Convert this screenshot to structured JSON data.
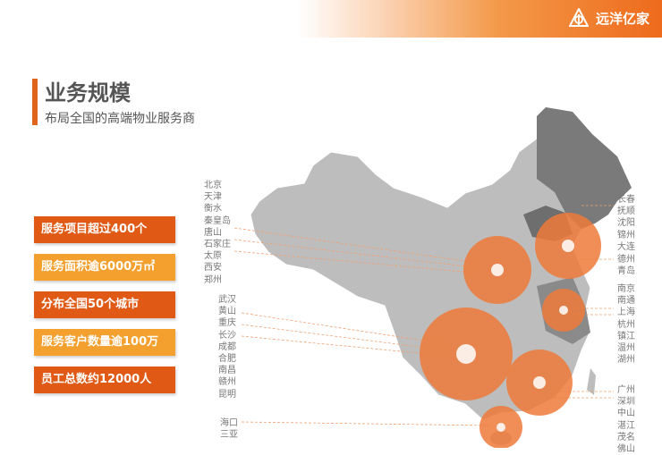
{
  "header": {
    "brand": "远洋亿家",
    "logo_icon": "ocean-homeplus-logo"
  },
  "title": "业务规模",
  "subtitle": "布局全国的高端物业服务商",
  "stats": [
    {
      "label": "服务项目超过400个",
      "color": "#e05a16"
    },
    {
      "label": "服务面积逾6000万㎡",
      "color": "#f4a02e"
    },
    {
      "label": "分布全国50个城市",
      "color": "#e05a16"
    },
    {
      "label": "服务客户数量逾100万",
      "color": "#f4a02e"
    },
    {
      "label": "员工总数约12000人",
      "color": "#e05a16"
    }
  ],
  "cities_left_1": [
    "北京",
    "天津",
    "衡水",
    "秦皇岛",
    "唐山",
    "石家庄",
    "太原",
    "西安",
    "郑州"
  ],
  "cities_left_2": [
    "武汉",
    "黄山",
    "重庆",
    "长沙",
    "成都",
    "合肥",
    "南昌",
    "赣州",
    "昆明"
  ],
  "cities_left_3": [
    "海口",
    "三亚"
  ],
  "cities_right_1": [
    "长春",
    "抚顺",
    "沈阳",
    "锦州",
    "大连"
  ],
  "cities_right_2": [
    "德州",
    "青岛"
  ],
  "cities_right_3": [
    "南京",
    "南通",
    "上海",
    "杭州",
    "镇江",
    "温州",
    "湖州"
  ],
  "cities_right_4": [
    "广州",
    "深圳",
    "中山",
    "湛江",
    "茂名",
    "佛山"
  ],
  "colors": {
    "accent": "#e0661e",
    "circle": "#ee7a3a",
    "map": "#bdbdbd",
    "map_dark": "#6e6e6e"
  }
}
